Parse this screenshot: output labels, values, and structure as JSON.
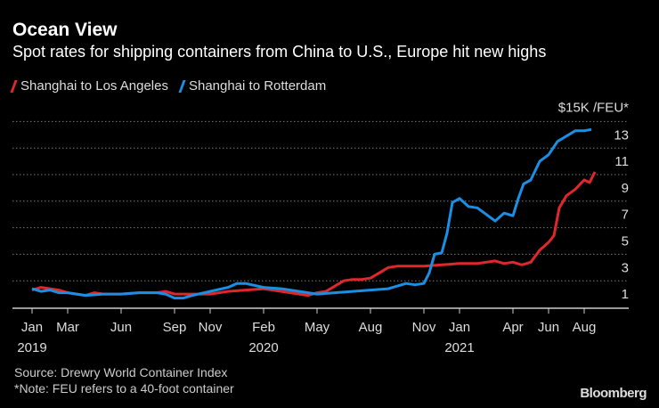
{
  "chart_data": {
    "type": "line",
    "title": "Ocean View",
    "subtitle": "Spot rates for shipping containers from China to U.S., Europe hit new highs",
    "ylabel": "$15K /FEU*",
    "ylim": [
      0,
      15
    ],
    "yticks": [
      1,
      3,
      5,
      7,
      9,
      11,
      13
    ],
    "gridlines": [
      2,
      4,
      6,
      8,
      10,
      12,
      14
    ],
    "x_unit": "months since Jan 2019",
    "xticks": [
      {
        "m": 0,
        "label": "Jan",
        "year": "2019"
      },
      {
        "m": 2,
        "label": "Mar"
      },
      {
        "m": 5,
        "label": "Jun"
      },
      {
        "m": 8,
        "label": "Sep"
      },
      {
        "m": 10,
        "label": "Nov"
      },
      {
        "m": 13,
        "label": "Feb",
        "year": "2020"
      },
      {
        "m": 16,
        "label": "May"
      },
      {
        "m": 19,
        "label": "Aug"
      },
      {
        "m": 22,
        "label": "Nov"
      },
      {
        "m": 24,
        "label": "Jan",
        "year": "2021"
      },
      {
        "m": 27,
        "label": "Apr"
      },
      {
        "m": 29,
        "label": "Jun"
      },
      {
        "m": 31,
        "label": "Aug"
      }
    ],
    "series": [
      {
        "name": "Shanghai to Los Angeles",
        "color": "#e0272b",
        "x": [
          0,
          0.5,
          1,
          1.5,
          2,
          2.5,
          3,
          3.5,
          4,
          5,
          6,
          7,
          7.5,
          8,
          9,
          10,
          11,
          12,
          13,
          14,
          15,
          15.5,
          16,
          16.5,
          17,
          17.5,
          18,
          18.5,
          19,
          19.5,
          20,
          20.5,
          21,
          21.5,
          22,
          23,
          24,
          25,
          26,
          26.5,
          27,
          27.5,
          28,
          28.5,
          29,
          29.3,
          29.6,
          30,
          30.5,
          31,
          31.3,
          31.6
        ],
        "values": [
          1.3,
          1.5,
          1.4,
          1.3,
          1.1,
          1.0,
          0.9,
          1.1,
          1.0,
          1.0,
          1.1,
          1.1,
          1.2,
          1.0,
          1.0,
          1.0,
          1.2,
          1.3,
          1.4,
          1.2,
          1.0,
          0.9,
          1.1,
          1.2,
          1.6,
          2.0,
          2.1,
          2.1,
          2.2,
          2.6,
          3.0,
          3.1,
          3.1,
          3.1,
          3.1,
          3.2,
          3.3,
          3.3,
          3.5,
          3.3,
          3.4,
          3.2,
          3.4,
          4.3,
          4.9,
          5.4,
          7.5,
          8.4,
          8.9,
          9.6,
          9.4,
          10.2
        ]
      },
      {
        "name": "Shanghai to Rotterdam",
        "color": "#1a8fe3",
        "x": [
          0,
          0.5,
          1,
          1.5,
          2,
          3,
          4,
          5,
          6,
          7,
          7.5,
          8,
          8.5,
          9,
          10,
          11,
          11.5,
          12,
          13,
          14,
          15,
          16,
          17,
          18,
          19,
          20,
          21,
          21.5,
          22,
          22.3,
          22.6,
          23,
          23.3,
          23.6,
          24,
          24.5,
          25,
          25.5,
          26,
          26.5,
          27,
          27.3,
          27.6,
          28,
          28.5,
          29,
          29.5,
          30,
          30.5,
          31,
          31.4
        ],
        "values": [
          1.4,
          1.2,
          1.3,
          1.1,
          1.1,
          0.9,
          1.0,
          1.0,
          1.1,
          1.1,
          1.0,
          0.7,
          0.7,
          0.9,
          1.2,
          1.5,
          1.8,
          1.8,
          1.5,
          1.4,
          1.2,
          1.0,
          1.1,
          1.2,
          1.3,
          1.4,
          1.8,
          1.7,
          1.8,
          2.6,
          4.0,
          4.1,
          5.6,
          7.9,
          8.2,
          7.6,
          7.5,
          7.0,
          6.5,
          7.1,
          6.9,
          8.2,
          9.3,
          9.6,
          11.0,
          11.5,
          12.5,
          12.9,
          13.3,
          13.3,
          13.4
        ]
      }
    ],
    "legend_position": "top-left",
    "grid": true
  },
  "source": "Source: Drewry World Container Index",
  "note": "*Note: FEU refers to a 40-foot container",
  "brand": "Bloomberg"
}
